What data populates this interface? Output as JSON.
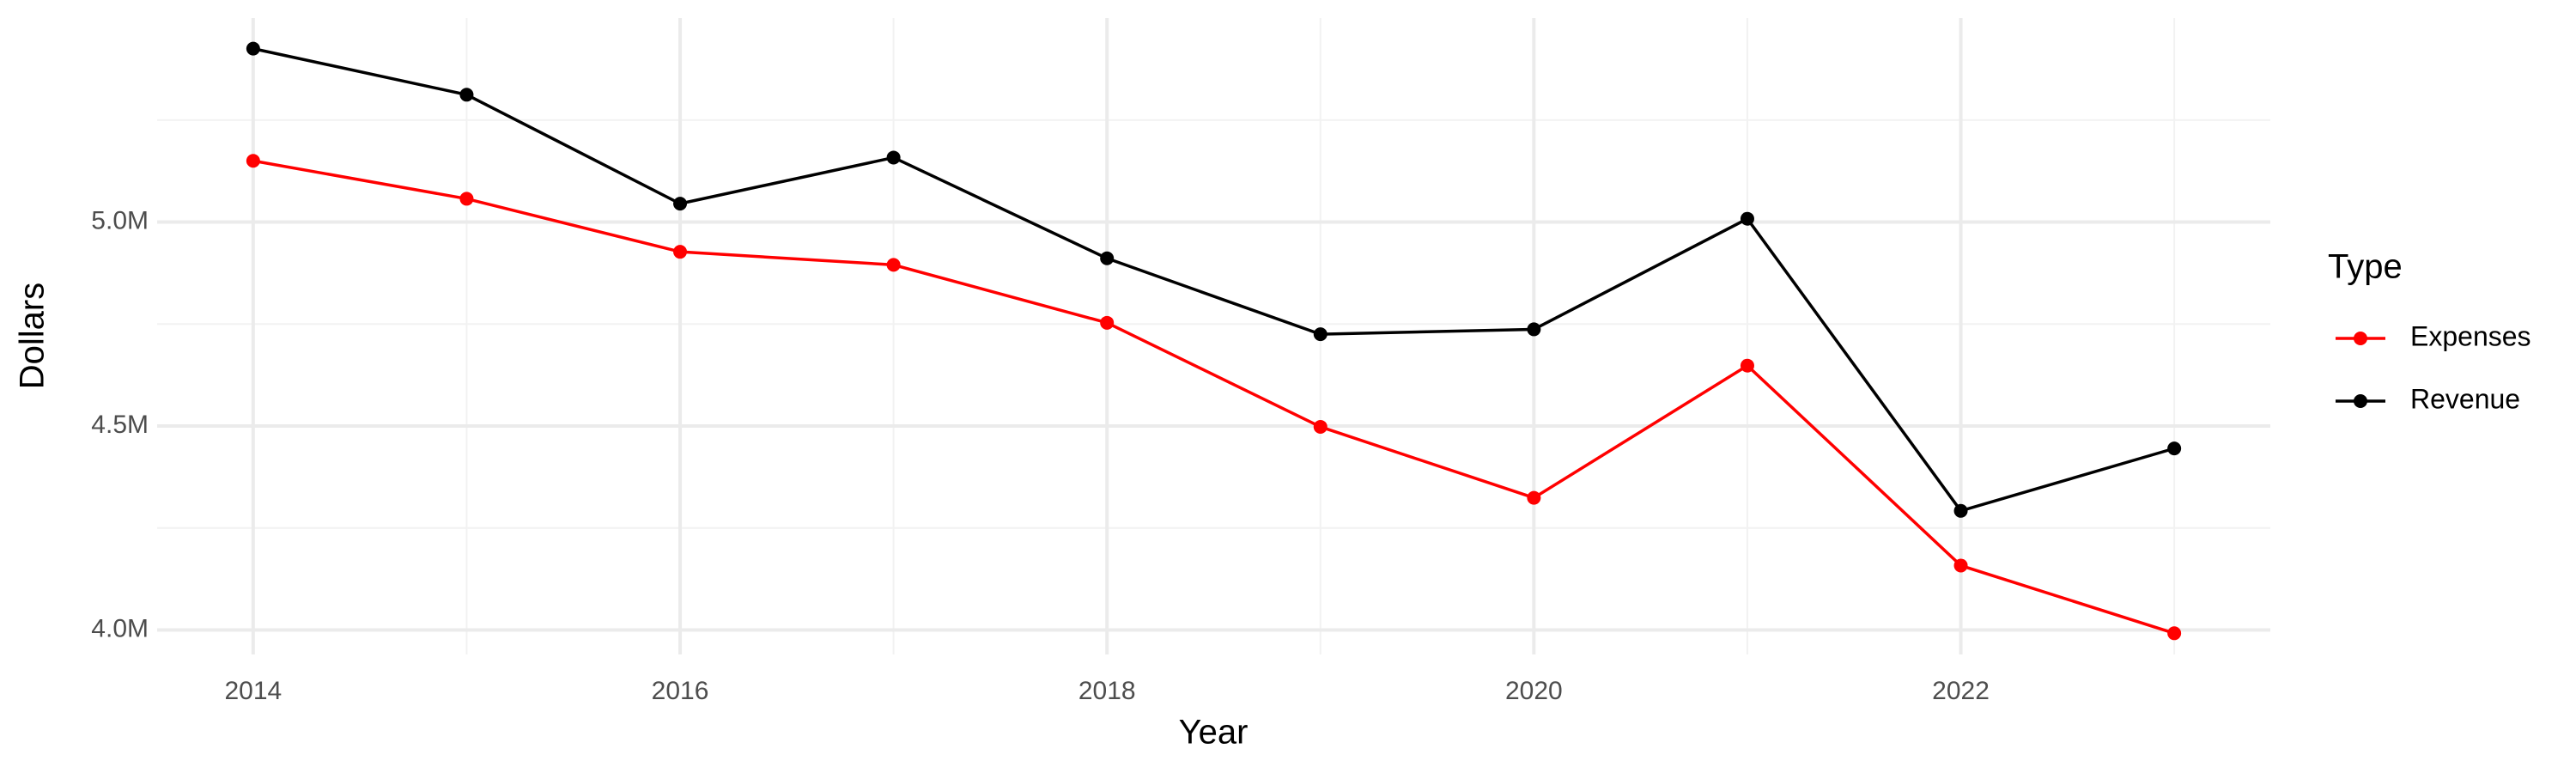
{
  "chart_data": {
    "type": "line",
    "x_label": "Year",
    "y_label": "Dollars",
    "legend_title": "Type",
    "x": [
      2014,
      2015,
      2016,
      2017,
      2018,
      2019,
      2020,
      2021,
      2022,
      2023
    ],
    "series": [
      {
        "name": "Expenses",
        "color": "#ff0000",
        "values": [
          5150000,
          5057000,
          4927000,
          4895000,
          4753000,
          4498000,
          4324000,
          4648000,
          4158000,
          3992000
        ]
      },
      {
        "name": "Revenue",
        "color": "#000000",
        "values": [
          5425000,
          5312000,
          5045000,
          5158000,
          4911000,
          4725000,
          4737000,
          5008000,
          4292000,
          4445000
        ]
      }
    ],
    "xlim": [
      2013.55,
      2023.45
    ],
    "xticks": [
      2014,
      2016,
      2018,
      2020,
      2022
    ],
    "xminorticks": [
      2015,
      2017,
      2019,
      2021,
      2023
    ],
    "ylim": [
      3940000,
      5500000
    ],
    "yticks": [
      {
        "value": 4000000,
        "label": "4.0M"
      },
      {
        "value": 4500000,
        "label": "4.5M"
      },
      {
        "value": 5000000,
        "label": "5.0M"
      }
    ],
    "yminorticks": [
      4250000,
      4750000,
      5250000
    ],
    "grid": true,
    "legend_position": "right"
  }
}
